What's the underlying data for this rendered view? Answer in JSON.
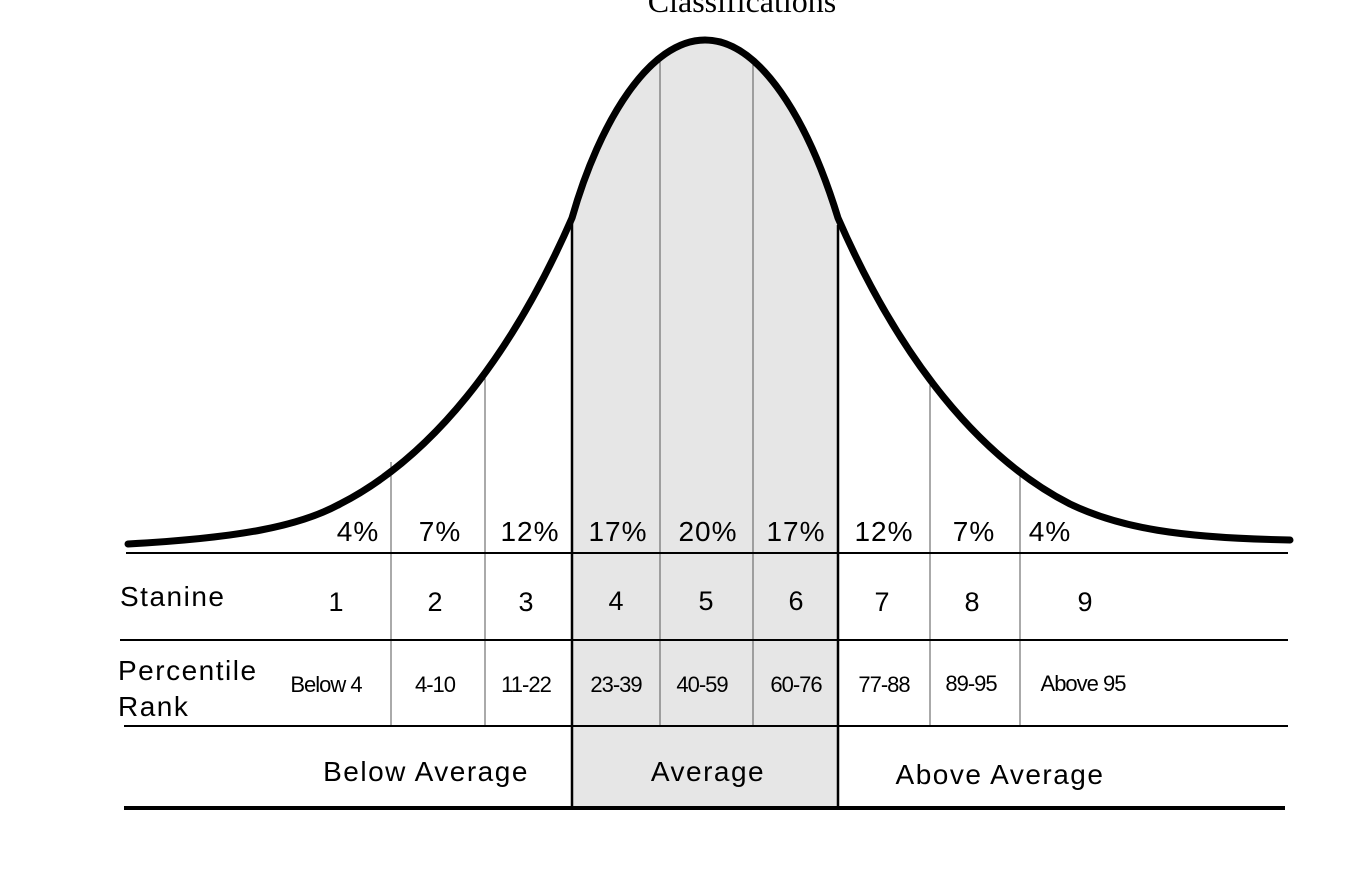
{
  "title": "Classifications",
  "colors": {
    "line": "#000000",
    "average_fill": "#e6e6e6",
    "background": "#ffffff"
  },
  "distribution": {
    "percentages": [
      "4%",
      "7%",
      "12%",
      "17%",
      "20%",
      "17%",
      "12%",
      "7%",
      "4%"
    ]
  },
  "rows": {
    "stanine_label": "Stanine",
    "stanines": [
      "1",
      "2",
      "3",
      "4",
      "5",
      "6",
      "7",
      "8",
      "9"
    ],
    "percentile_label_line1": "Percentile",
    "percentile_label_line2": "Rank",
    "percentile_ranks": [
      "Below 4",
      "4-10",
      "11-22",
      "23-39",
      "40-59",
      "60-76",
      "77-88",
      "89-95",
      "Above 95"
    ]
  },
  "classifications": {
    "below": "Below Average",
    "average": "Average",
    "above": "Above Average"
  }
}
